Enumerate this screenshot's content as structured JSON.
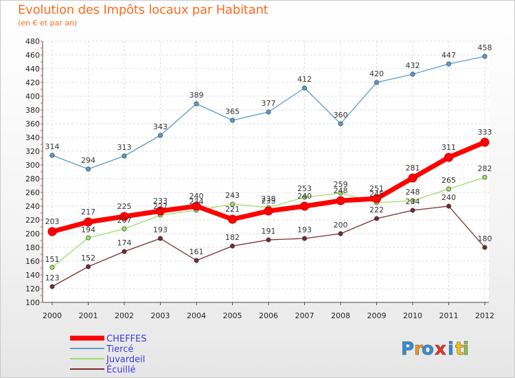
{
  "header": {
    "title": "Evolution des Impôts locaux par Habitant",
    "subtitle": "(en € et par an)"
  },
  "logo": {
    "letters": [
      "P",
      "r",
      "o",
      "x",
      "i",
      "t",
      "i"
    ],
    "colors": [
      "#2e8fd6",
      "#f29a1f",
      "#2e8fd6",
      "#e8302a",
      "#2e8fd6",
      "#f5c400",
      "#8cc63f"
    ]
  },
  "chart_data": {
    "type": "line",
    "title": "Evolution des Impôts locaux par Habitant",
    "subtitle": "(en € et par an)",
    "x": [
      "2000",
      "2001",
      "2002",
      "2003",
      "2004",
      "2005",
      "2006",
      "2007",
      "2008",
      "2009",
      "2010",
      "2011",
      "2012"
    ],
    "ylim": [
      100,
      480
    ],
    "yticks": [
      100,
      120,
      140,
      160,
      180,
      200,
      220,
      240,
      260,
      280,
      300,
      320,
      340,
      360,
      380,
      400,
      420,
      440,
      460,
      480
    ],
    "grid": true,
    "legend_position": "bottom-left",
    "series": [
      {
        "name": "Tiercé",
        "color": "#5a9bd0",
        "values": [
          314,
          294,
          313,
          343,
          389,
          365,
          377,
          412,
          360,
          420,
          432,
          447,
          458
        ]
      },
      {
        "name": "Juvardeil",
        "color": "#99dd66",
        "values": [
          151,
          194,
          207,
          227,
          234,
          243,
          238,
          253,
          259,
          245,
          248,
          265,
          282
        ]
      },
      {
        "name": "Écuillé",
        "color": "#7a2a2a",
        "values": [
          123,
          152,
          174,
          193,
          161,
          182,
          191,
          193,
          200,
          222,
          234,
          240,
          180
        ]
      },
      {
        "name": "CHEFFES",
        "color": "#ff0000",
        "values": [
          203,
          217,
          225,
          233,
          240,
          221,
          233,
          240,
          248,
          251,
          281,
          311,
          333
        ]
      }
    ],
    "legend_order": [
      "CHEFFES",
      "Tiercé",
      "Juvardeil",
      "Écuillé"
    ]
  }
}
